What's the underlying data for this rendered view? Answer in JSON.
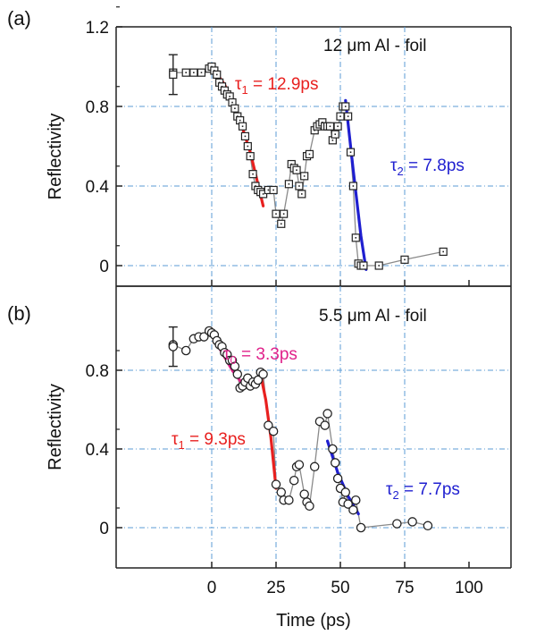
{
  "figure": {
    "xlabel": "Time (ps)",
    "x_ticks": [
      "0",
      "25",
      "50",
      "75",
      "100"
    ]
  },
  "chart_data": [
    {
      "type": "scatter",
      "panel_label": "(a)",
      "title": "12 μm Al - foil",
      "xlabel": "Time (ps)",
      "ylabel": "Reflectivity",
      "xlim": [
        -17,
        100
      ],
      "ylim": [
        -0.05,
        1.2
      ],
      "y_ticks": [
        "0",
        "0.4",
        "0.8",
        "1.2"
      ],
      "grid": "dash-dot",
      "marker": "square",
      "error_bar": {
        "x": -15,
        "y": 0.96,
        "err": 0.1
      },
      "series": [
        {
          "x": [
            -15,
            -10,
            -7,
            -4,
            -1,
            0,
            1,
            2,
            3,
            4,
            5,
            6,
            7,
            8,
            9,
            10,
            11,
            12,
            13,
            14,
            15,
            16,
            17,
            18,
            19,
            20,
            22,
            24,
            25,
            27,
            28,
            30,
            31,
            32,
            33,
            34,
            35,
            36,
            37,
            38,
            40,
            41,
            42,
            43,
            44,
            45,
            46,
            47,
            48,
            49,
            50,
            51,
            52,
            53,
            54,
            55,
            56,
            57,
            58,
            59,
            65,
            75,
            90
          ],
          "y": [
            0.97,
            0.97,
            0.97,
            0.97,
            0.99,
            1.0,
            0.98,
            0.96,
            0.92,
            0.9,
            0.88,
            0.86,
            0.85,
            0.82,
            0.79,
            0.75,
            0.73,
            0.7,
            0.65,
            0.6,
            0.55,
            0.46,
            0.4,
            0.38,
            0.37,
            0.36,
            0.38,
            0.38,
            0.26,
            0.21,
            0.26,
            0.41,
            0.51,
            0.49,
            0.48,
            0.4,
            0.36,
            0.45,
            0.55,
            0.56,
            0.68,
            0.7,
            0.71,
            0.72,
            0.7,
            0.7,
            0.7,
            0.63,
            0.66,
            0.7,
            0.75,
            0.8,
            0.8,
            0.75,
            0.57,
            0.4,
            0.14,
            0.01,
            0.0,
            0.0,
            0.0,
            0.03,
            0.07
          ]
        }
      ],
      "fits": [
        {
          "label": "τ₁ = 12.9ps",
          "color": "#e8201f",
          "x": [
            0,
            5,
            10,
            15,
            20
          ],
          "y": [
            1.0,
            0.91,
            0.77,
            0.57,
            0.3
          ]
        },
        {
          "label": "τ₂ = 7.8ps",
          "color": "#1f1fd0",
          "x": [
            52,
            55,
            58,
            60
          ],
          "y": [
            0.83,
            0.48,
            0.15,
            -0.02
          ]
        }
      ]
    },
    {
      "type": "scatter",
      "panel_label": "(b)",
      "title": "5.5 μm Al - foil",
      "xlabel": "Time (ps)",
      "ylabel": "Reflectivity",
      "xlim": [
        -17,
        100
      ],
      "ylim": [
        -0.05,
        1.1
      ],
      "y_ticks": [
        "0",
        "0.4",
        "0.8"
      ],
      "grid": "dash-dot",
      "marker": "circle",
      "error_bar": {
        "x": -15,
        "y": 0.92,
        "err": 0.1
      },
      "series": [
        {
          "x": [
            -15,
            -10,
            -7,
            -5,
            -3,
            -1,
            0,
            1,
            2,
            3,
            4,
            5,
            6,
            7,
            8,
            9,
            10,
            11,
            12,
            13,
            14,
            15,
            16,
            17,
            18,
            19,
            20,
            22,
            24,
            25,
            27,
            28,
            30,
            32,
            33,
            34,
            36,
            37,
            38,
            40,
            42,
            44,
            45,
            47,
            48,
            49,
            50,
            51,
            52,
            53,
            55,
            56,
            58,
            72,
            78,
            84
          ],
          "y": [
            0.93,
            0.9,
            0.96,
            0.97,
            0.97,
            1.0,
            0.99,
            0.98,
            0.95,
            0.93,
            0.92,
            0.89,
            0.88,
            0.85,
            0.85,
            0.82,
            0.78,
            0.71,
            0.72,
            0.74,
            0.76,
            0.72,
            0.74,
            0.73,
            0.75,
            0.79,
            0.78,
            0.52,
            0.49,
            0.22,
            0.18,
            0.14,
            0.14,
            0.24,
            0.31,
            0.32,
            0.17,
            0.13,
            0.11,
            0.31,
            0.54,
            0.52,
            0.58,
            0.4,
            0.33,
            0.25,
            0.2,
            0.13,
            0.18,
            0.12,
            0.09,
            0.14,
            0.0,
            0.02,
            0.03,
            0.01
          ]
        }
      ],
      "fits": [
        {
          "label": "τ₀ = 3.3ps",
          "color": "#e0218a",
          "x": [
            0,
            4,
            8,
            12
          ],
          "y": [
            0.98,
            0.89,
            0.8,
            0.73
          ]
        },
        {
          "label": "τ₁ = 9.3ps",
          "color": "#e8201f",
          "x": [
            19,
            21,
            23,
            25
          ],
          "y": [
            0.78,
            0.65,
            0.46,
            0.2
          ]
        },
        {
          "label": "τ₂ = 7.7ps",
          "color": "#1f1fd0",
          "x": [
            45,
            49,
            53,
            57
          ],
          "y": [
            0.44,
            0.28,
            0.16,
            0.07
          ]
        }
      ]
    }
  ]
}
